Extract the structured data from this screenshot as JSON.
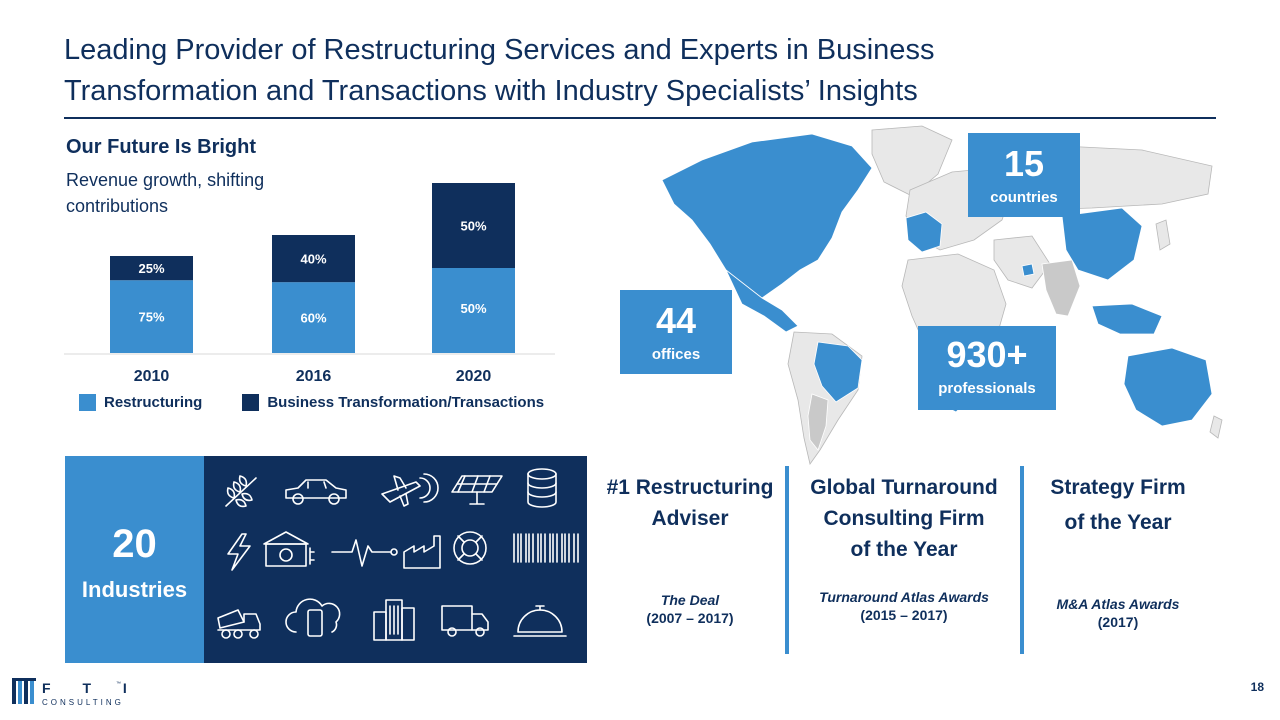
{
  "title_line1": "Leading Provider of Restructuring Services and Experts in Business",
  "title_line2": "Transformation and Transactions with Industry Specialists’ Insights",
  "chart_heading": "Our Future Is Bright",
  "chart_subheading": "Revenue growth, shifting contributions",
  "colors": {
    "navy": "#0f2f5c",
    "blue": "#3a8ecf",
    "map_base": "#e8e8e8",
    "map_gray": "#c9c9c9"
  },
  "chart_data": {
    "type": "bar",
    "stacked": true,
    "categories": [
      "2010",
      "2016",
      "2020"
    ],
    "series": [
      {
        "name": "Restructuring",
        "values": [
          75,
          60,
          50
        ],
        "labels": [
          "75%",
          "60%",
          "50%"
        ],
        "color": "#3a8ecf"
      },
      {
        "name": "Business Transformation/Transactions",
        "values": [
          25,
          40,
          50
        ],
        "labels": [
          "25%",
          "40%",
          "50%"
        ],
        "color": "#0f2f5c"
      }
    ],
    "legend_placement": "bottom"
  },
  "stats": {
    "countries": {
      "num": "15",
      "label": "countries"
    },
    "offices": {
      "num": "44",
      "label": "offices"
    },
    "professionals": {
      "num": "930+",
      "label": "professionals"
    }
  },
  "industries": {
    "num": "20",
    "label": "Industries",
    "icons": [
      "wheat-icon",
      "car-icon",
      "airplane-icon",
      "solar-panel-icon",
      "database-icon",
      "lightning-icon",
      "bank-icon",
      "heartbeat-icon",
      "factory-icon",
      "lifebuoy-icon",
      "barcode-icon",
      "dump-truck-icon",
      "cloud-phone-icon",
      "buildings-icon",
      "delivery-truck-icon",
      "service-bell-icon"
    ]
  },
  "awards": [
    {
      "head1": "#1 Restructuring",
      "head2": "Adviser",
      "head3": "",
      "source": "The Deal",
      "years": "(2007 – 2017)"
    },
    {
      "head1": "Global Turnaround",
      "head2": "Consulting Firm",
      "head3": "of the Year",
      "source": "Turnaround Atlas Awards",
      "years": "(2015 – 2017)"
    },
    {
      "head1": "Strategy Firm",
      "head2": "of the Year",
      "head3": "",
      "source": "M&A Atlas Awards",
      "years": "(2017)"
    }
  ],
  "logo": {
    "line1": "F T I",
    "line2": "CONSULTING",
    "tm": "™"
  },
  "page_number": "18"
}
